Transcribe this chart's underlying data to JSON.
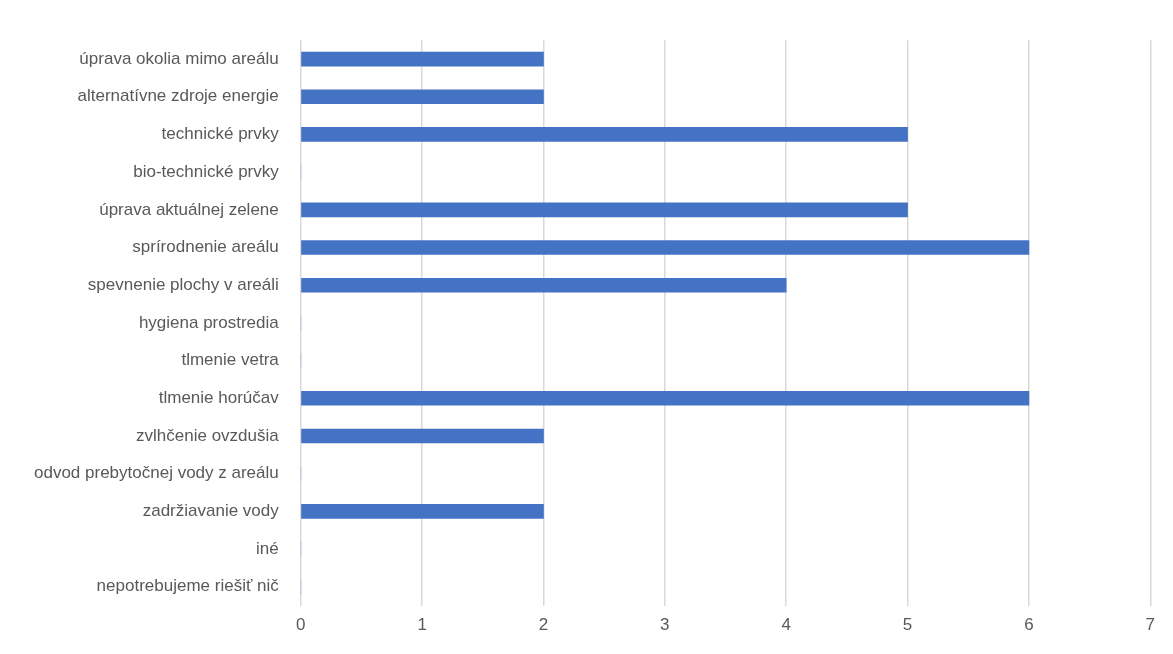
{
  "chart_data": {
    "type": "bar",
    "orientation": "horizontal",
    "categories": [
      "úprava okolia mimo areálu",
      "alternatívne zdroje energie",
      "technické prvky",
      "bio-technické prvky",
      "úprava aktuálnej zelene",
      "sprírodnenie areálu",
      "spevnenie plochy v areáli",
      "hygiena prostredia",
      "tlmenie vetra",
      "tlmenie horúčav",
      "zvlhčenie ovzdušia",
      "odvod prebytočnej vody z areálu",
      "zadržiavanie vody",
      "iné",
      "nepotrebujeme riešiť nič"
    ],
    "values": [
      2,
      2,
      5,
      0,
      5,
      6,
      4,
      0,
      0,
      6,
      2,
      0,
      2,
      0,
      0
    ],
    "color": "#4472c4",
    "xlim": [
      0,
      7
    ],
    "xticks": [
      0,
      1,
      2,
      3,
      4,
      5,
      6,
      7
    ],
    "grid": "x",
    "legend": false
  }
}
